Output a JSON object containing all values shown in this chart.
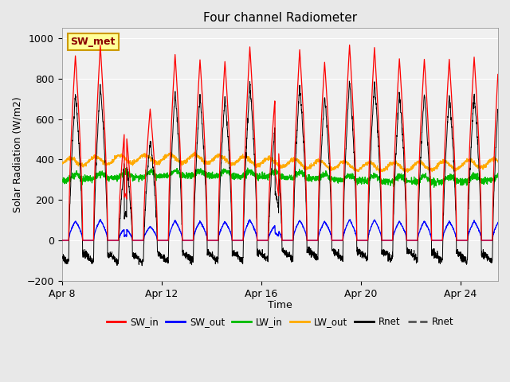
{
  "title": "Four channel Radiometer",
  "xlabel": "Time",
  "ylabel": "Solar Radiation (W/m2)",
  "ylim": [
    -200,
    1050
  ],
  "yticks": [
    -200,
    0,
    200,
    400,
    600,
    800,
    1000
  ],
  "x_tick_positions": [
    0,
    4,
    8,
    12,
    16
  ],
  "x_tick_labels": [
    "Apr 8",
    "Apr 12",
    "Apr 16",
    "Apr 20",
    "Apr 24"
  ],
  "xlim": [
    0,
    17.5
  ],
  "annotation_text": "SW_met",
  "colors": {
    "SW_in": "#ff0000",
    "SW_out": "#0000ff",
    "LW_in": "#00bb00",
    "LW_out": "#ffaa00",
    "Rnet": "#000000"
  },
  "legend_labels": [
    "SW_in",
    "SW_out",
    "LW_in",
    "LW_out",
    "Rnet",
    "Rnet"
  ],
  "bg_color": "#e8e8e8",
  "plot_bg": "#f0f0f0"
}
